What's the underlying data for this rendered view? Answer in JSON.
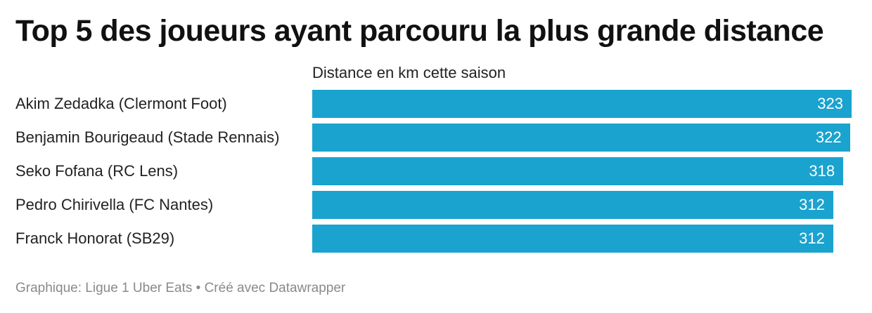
{
  "chart_data": {
    "type": "bar",
    "orientation": "horizontal",
    "title": "Top 5 des joueurs ayant parcouru la plus grande distance",
    "value_header": "Distance en km cette saison",
    "categories": [
      "Akim Zedadka (Clermont Foot)",
      "Benjamin Bourigeaud (Stade Rennais)",
      "Seko Fofana (RC Lens)",
      "Pedro Chirivella (FC Nantes)",
      "Franck Honorat (SB29)"
    ],
    "values": [
      323,
      322,
      318,
      312,
      312
    ],
    "value_labels": [
      "323",
      "322",
      "318",
      "312",
      "312"
    ],
    "bar_color": "#1aa3cf",
    "grid": false,
    "legend": "none"
  },
  "footer": {
    "source": "Graphique: Ligue 1 Uber Eats • Créé avec Datawrapper"
  }
}
